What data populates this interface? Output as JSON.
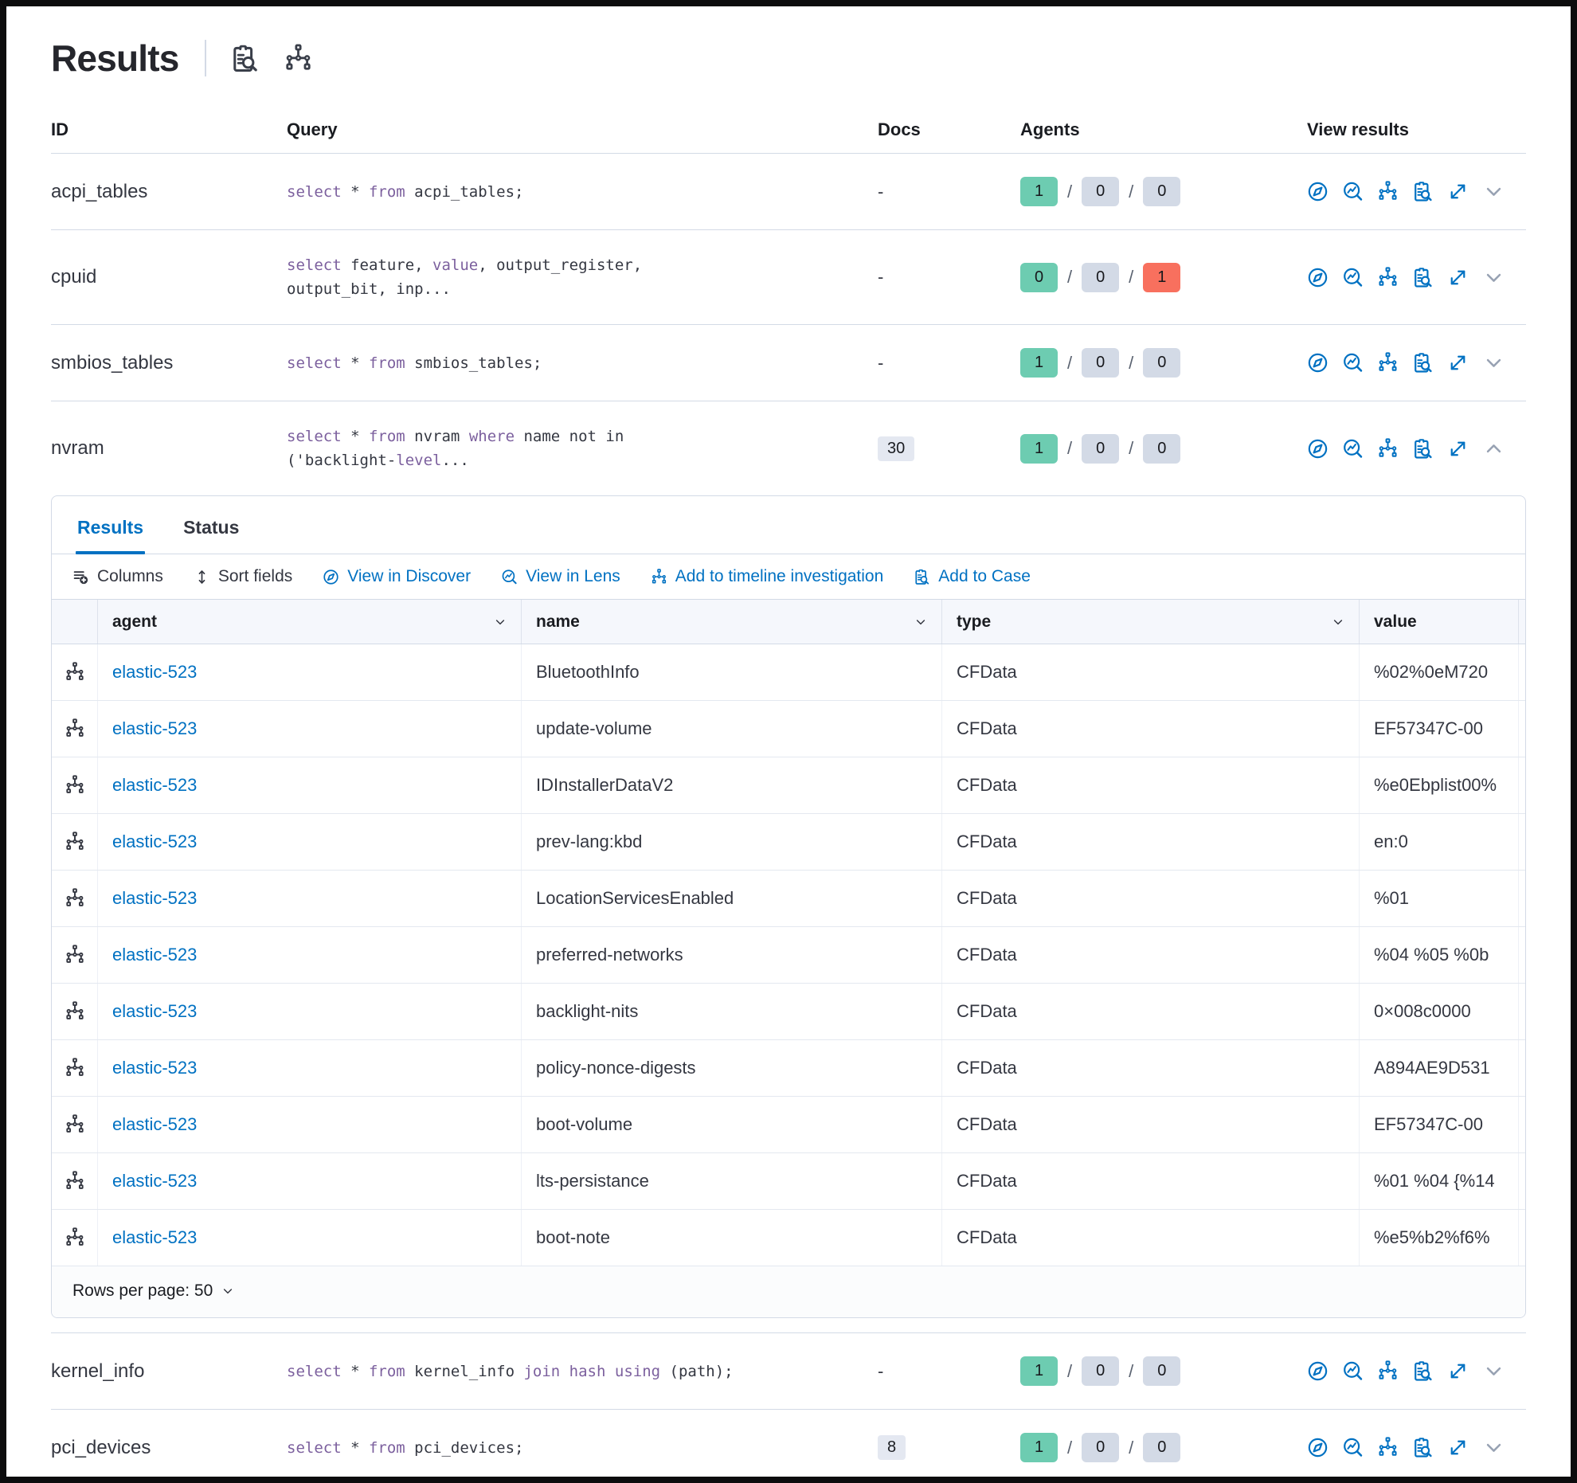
{
  "header": {
    "title": "Results",
    "icons": [
      "inspect-icon",
      "timeline-icon"
    ]
  },
  "results_table": {
    "columns": {
      "id": "ID",
      "query": "Query",
      "docs": "Docs",
      "agents": "Agents",
      "view_results": "View results"
    },
    "view_results_icons": [
      "discover-icon",
      "lens-icon",
      "timeline-icon",
      "case-icon",
      "expand-icon",
      "chevron-icon"
    ],
    "rows": [
      {
        "id": "acpi_tables",
        "query_lines": [
          [
            {
              "t": "select",
              "kw": true
            },
            {
              "t": " * "
            },
            {
              "t": "from",
              "kw": true
            },
            {
              "t": " acpi_tables;"
            }
          ]
        ],
        "docs": "-",
        "docs_badge": false,
        "agents": [
          {
            "value": "1",
            "type": "success"
          },
          {
            "value": "0",
            "type": "default"
          },
          {
            "value": "0",
            "type": "default"
          }
        ],
        "expanded": false
      },
      {
        "id": "cpuid",
        "query_lines": [
          [
            {
              "t": "select",
              "kw": true
            },
            {
              "t": " feature, "
            },
            {
              "t": "value",
              "kw": true
            },
            {
              "t": ", output_register,"
            }
          ],
          [
            {
              "t": "output_bit, inp..."
            }
          ]
        ],
        "docs": "-",
        "docs_badge": false,
        "agents": [
          {
            "value": "0",
            "type": "success"
          },
          {
            "value": "0",
            "type": "default"
          },
          {
            "value": "1",
            "type": "danger"
          }
        ],
        "expanded": false
      },
      {
        "id": "smbios_tables",
        "query_lines": [
          [
            {
              "t": "select",
              "kw": true
            },
            {
              "t": " * "
            },
            {
              "t": "from",
              "kw": true
            },
            {
              "t": " smbios_tables;"
            }
          ]
        ],
        "docs": "-",
        "docs_badge": false,
        "agents": [
          {
            "value": "1",
            "type": "success"
          },
          {
            "value": "0",
            "type": "default"
          },
          {
            "value": "0",
            "type": "default"
          }
        ],
        "expanded": false
      },
      {
        "id": "nvram",
        "query_lines": [
          [
            {
              "t": "select",
              "kw": true
            },
            {
              "t": " * "
            },
            {
              "t": "from",
              "kw": true
            },
            {
              "t": " nvram "
            },
            {
              "t": "where",
              "kw": true
            },
            {
              "t": " name not in"
            }
          ],
          [
            {
              "t": "('backlight-"
            },
            {
              "t": "level",
              "kw": true
            },
            {
              "t": "..."
            }
          ]
        ],
        "docs": "30",
        "docs_badge": true,
        "agents": [
          {
            "value": "1",
            "type": "success"
          },
          {
            "value": "0",
            "type": "default"
          },
          {
            "value": "0",
            "type": "default"
          }
        ],
        "expanded": true
      },
      {
        "id": "kernel_info",
        "query_lines": [
          [
            {
              "t": "select",
              "kw": true
            },
            {
              "t": " * "
            },
            {
              "t": "from",
              "kw": true
            },
            {
              "t": " kernel_info "
            },
            {
              "t": "join",
              "kw": true
            },
            {
              "t": " "
            },
            {
              "t": "hash",
              "kw": true
            },
            {
              "t": " "
            },
            {
              "t": "using",
              "kw": true
            },
            {
              "t": " (path);"
            }
          ]
        ],
        "docs": "-",
        "docs_badge": false,
        "agents": [
          {
            "value": "1",
            "type": "success"
          },
          {
            "value": "0",
            "type": "default"
          },
          {
            "value": "0",
            "type": "default"
          }
        ],
        "expanded": false
      },
      {
        "id": "pci_devices",
        "query_lines": [
          [
            {
              "t": "select",
              "kw": true
            },
            {
              "t": " * "
            },
            {
              "t": "from",
              "kw": true
            },
            {
              "t": " pci_devices;"
            }
          ]
        ],
        "docs": "8",
        "docs_badge": true,
        "agents": [
          {
            "value": "1",
            "type": "success"
          },
          {
            "value": "0",
            "type": "default"
          },
          {
            "value": "0",
            "type": "default"
          }
        ],
        "expanded": false
      }
    ]
  },
  "expanded_panel": {
    "tabs": [
      {
        "label": "Results",
        "active": true
      },
      {
        "label": "Status",
        "active": false
      }
    ],
    "toolbar": [
      {
        "label": "Columns",
        "icon": "columns-icon"
      },
      {
        "label": "Sort fields",
        "icon": "sort-icon"
      },
      {
        "label": "View in Discover",
        "icon": "discover-icon"
      },
      {
        "label": "View in Lens",
        "icon": "lens-icon"
      },
      {
        "label": "Add to timeline investigation",
        "icon": "timeline-icon"
      },
      {
        "label": "Add to Case",
        "icon": "case-icon"
      }
    ],
    "grid": {
      "columns": [
        "agent",
        "name",
        "type",
        "value"
      ],
      "rows": [
        {
          "agent": "elastic-523",
          "name": "BluetoothInfo",
          "type": "CFData",
          "value": "%02%0eM720"
        },
        {
          "agent": "elastic-523",
          "name": "update-volume",
          "type": "CFData",
          "value": "EF57347C-00"
        },
        {
          "agent": "elastic-523",
          "name": "IDInstallerDataV2",
          "type": "CFData",
          "value": "%e0Ebplist00%"
        },
        {
          "agent": "elastic-523",
          "name": "prev-lang:kbd",
          "type": "CFData",
          "value": "en:0"
        },
        {
          "agent": "elastic-523",
          "name": "LocationServicesEnabled",
          "type": "CFData",
          "value": "%01"
        },
        {
          "agent": "elastic-523",
          "name": "preferred-networks",
          "type": "CFData",
          "value": "%04 %05 %0b"
        },
        {
          "agent": "elastic-523",
          "name": "backlight-nits",
          "type": "CFData",
          "value": "0×008c0000"
        },
        {
          "agent": "elastic-523",
          "name": "policy-nonce-digests",
          "type": "CFData",
          "value": "A894AE9D531"
        },
        {
          "agent": "elastic-523",
          "name": "boot-volume",
          "type": "CFData",
          "value": "EF57347C-00"
        },
        {
          "agent": "elastic-523",
          "name": "lts-persistance",
          "type": "CFData",
          "value": "%01 %04 {%14"
        },
        {
          "agent": "elastic-523",
          "name": "boot-note",
          "type": "CFData",
          "value": "%e5%b2%f6%"
        }
      ]
    },
    "footer": {
      "rows_per_page": "Rows per page: 50"
    }
  },
  "colors": {
    "primary_blue": "#0071c2",
    "keyword_purple": "#7c609e",
    "success_badge": "#6dccb1",
    "danger_badge": "#f8705e",
    "neutral_badge": "#d3dae6",
    "docs_badge": "#e4e8f1",
    "border": "#d3dae6",
    "text_dark": "#343741"
  }
}
